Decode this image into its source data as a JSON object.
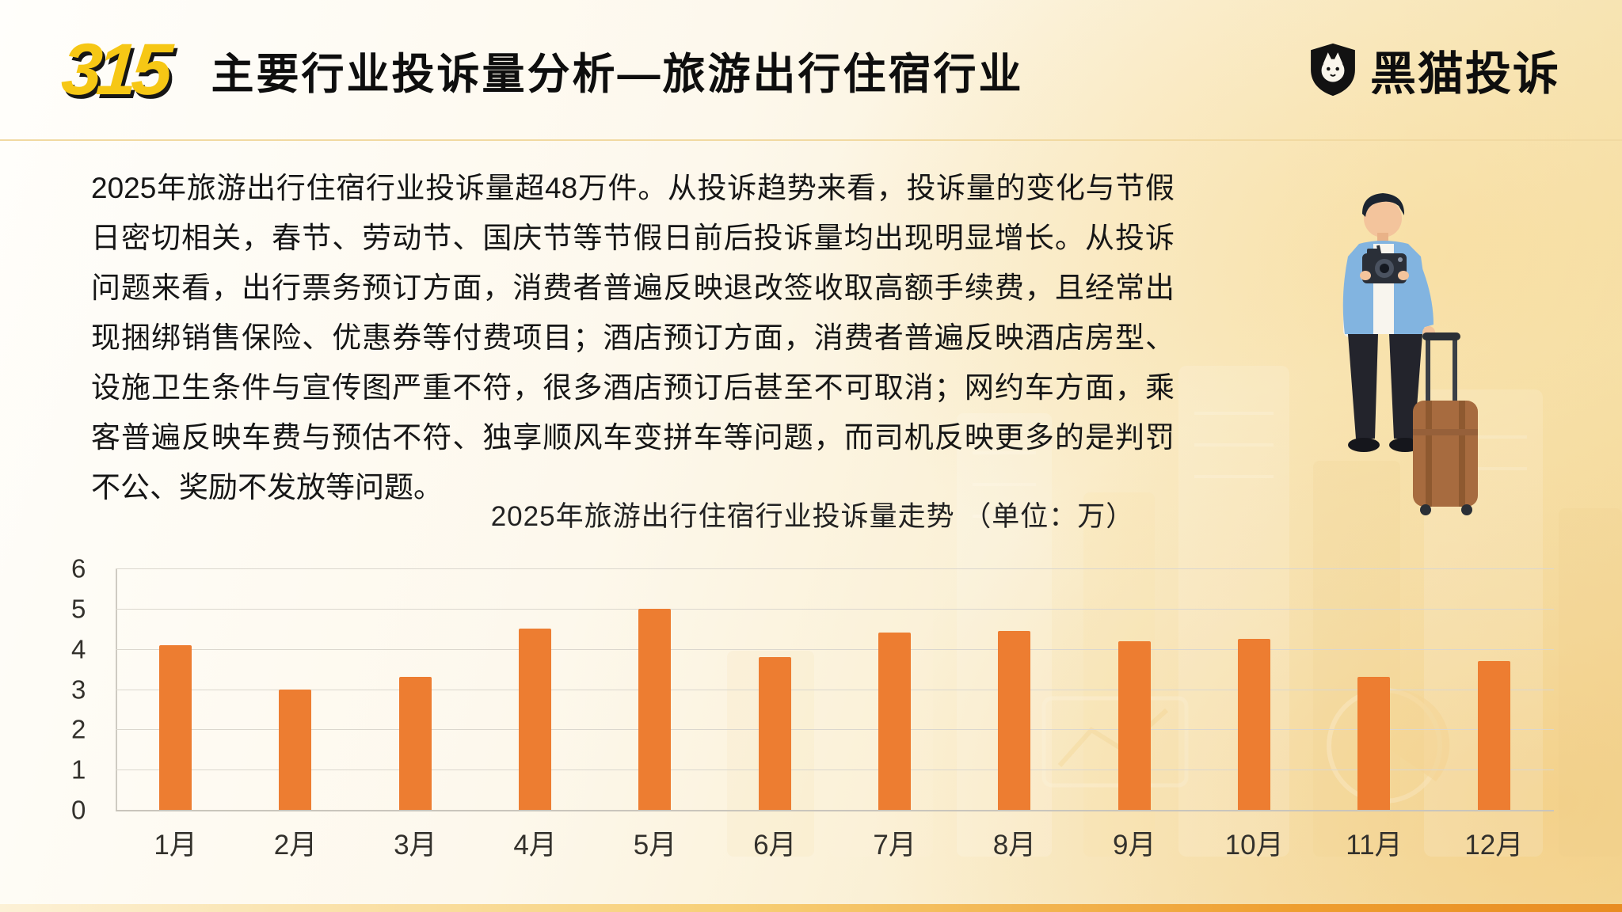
{
  "header": {
    "logo_315": "315",
    "title": "主要行业投诉量分析—旅游出行住宿行业",
    "brand": "黑猫投诉"
  },
  "body": {
    "paragraph": "2025年旅游出行住宿行业投诉量超48万件。从投诉趋势来看，投诉量的变化与节假日密切相关，春节、劳动节、国庆节等节假日前后投诉量均出现明显增长。从投诉问题来看，出行票务预订方面，消费者普遍反映退改签收取高额手续费，且经常出现捆绑销售保险、优惠券等付费项目；酒店预订方面，消费者普遍反映酒店房型、设施卫生条件与宣传图严重不符，很多酒店预订后甚至不可取消；网约车方面，乘客普遍反映车费与预估不符、独享顺风车变拼车等问题，而司机反映更多的是判罚不公、奖励不发放等问题。"
  },
  "chart_data": {
    "type": "bar",
    "title": "2025年旅游出行住宿行业投诉量走势 （单位：万）",
    "categories": [
      "1月",
      "2月",
      "3月",
      "4月",
      "5月",
      "6月",
      "7月",
      "8月",
      "9月",
      "10月",
      "11月",
      "12月"
    ],
    "values": [
      4.1,
      3.0,
      3.3,
      4.5,
      5.0,
      3.8,
      4.4,
      4.45,
      4.2,
      4.25,
      3.3,
      3.7
    ],
    "xlabel": "",
    "ylabel": "",
    "ylim": [
      0,
      6
    ],
    "yticks": [
      6,
      5,
      4,
      3,
      2,
      1,
      0
    ],
    "grid": true,
    "legend": "none",
    "bar_color": "#ED7D31"
  },
  "colors": {
    "bar": "#ED7D31",
    "accent_yellow": "#F6C715",
    "divider": "#F1D9A1",
    "background_gold": "#F4DFA6"
  }
}
